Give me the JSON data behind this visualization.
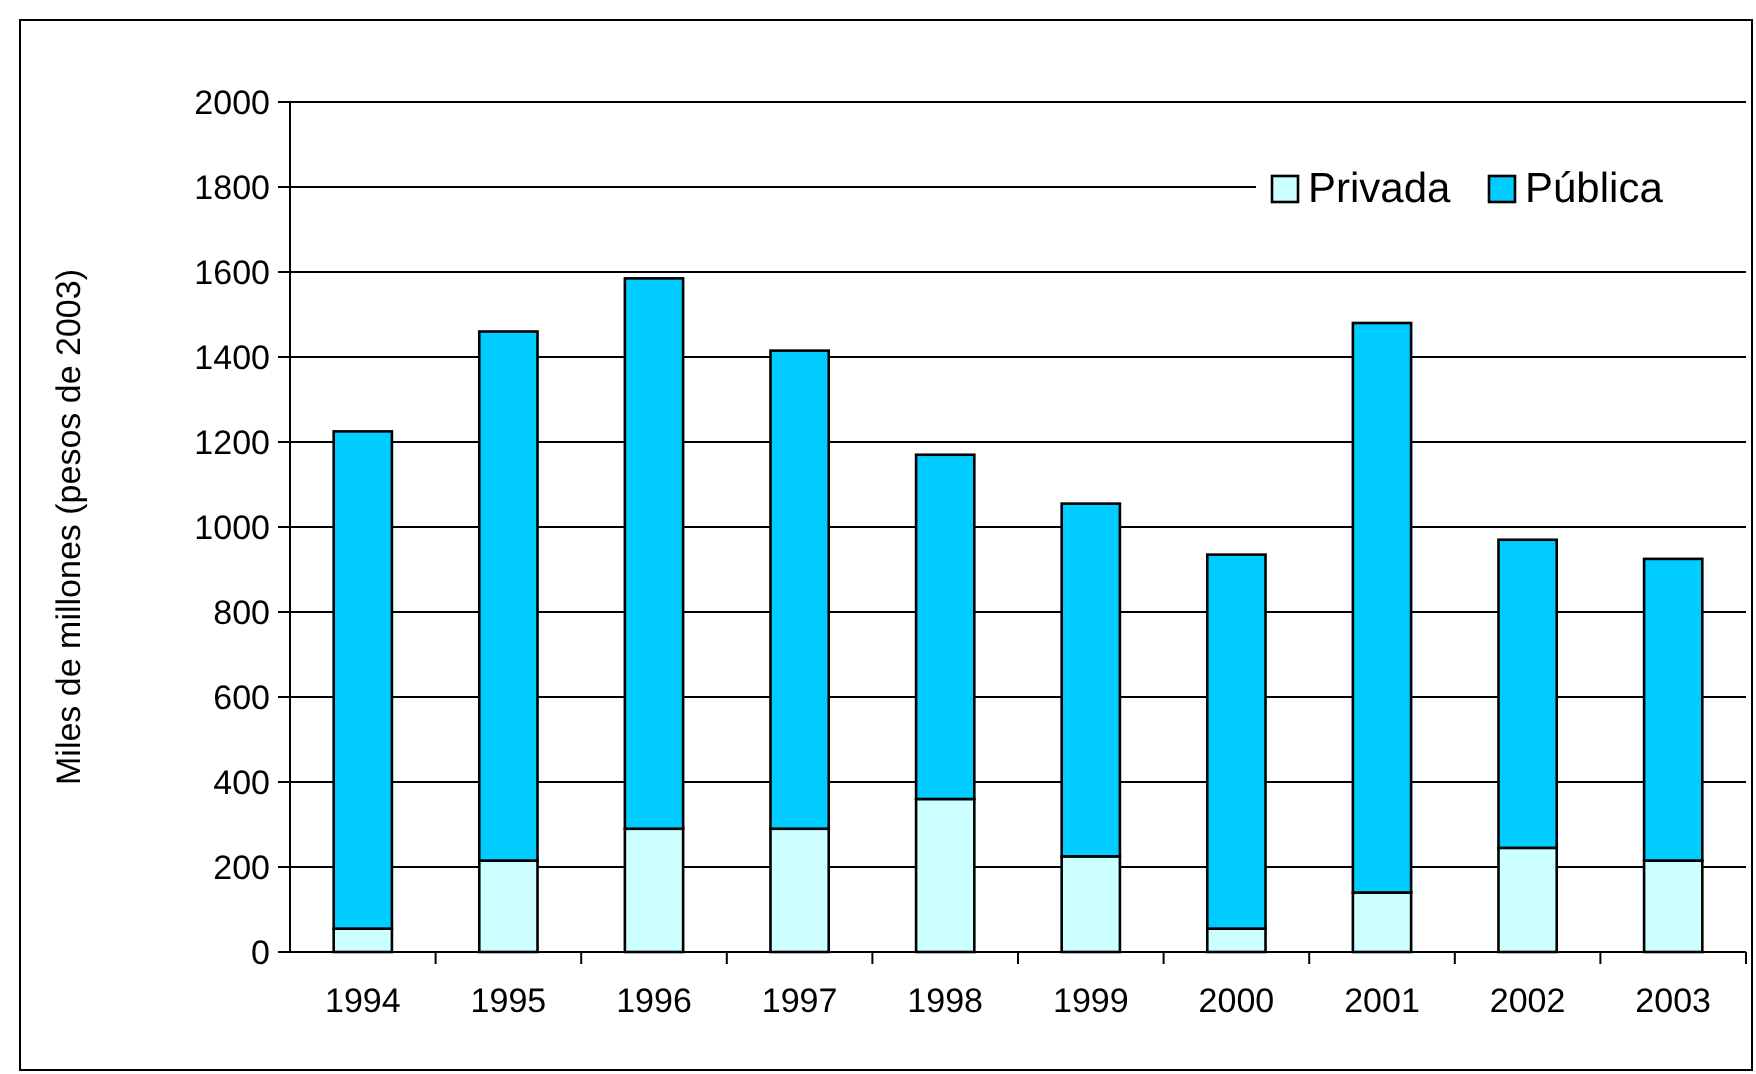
{
  "chart_data": {
    "type": "bar",
    "stacked": true,
    "ylabel": "Miles de millones (pesos de 2003)",
    "categories": [
      "1994",
      "1995",
      "1996",
      "1997",
      "1998",
      "1999",
      "2000",
      "2001",
      "2002",
      "2003"
    ],
    "series": [
      {
        "name": "Privada",
        "color": "#ccffff",
        "values": [
          55,
          215,
          290,
          290,
          360,
          225,
          55,
          140,
          245,
          215
        ]
      },
      {
        "name": "Pública",
        "color": "#00ccff",
        "values": [
          1170,
          1245,
          1295,
          1125,
          810,
          830,
          880,
          1340,
          725,
          710
        ]
      }
    ],
    "ylim": [
      0,
      2000
    ],
    "yticks": [
      0,
      200,
      400,
      600,
      800,
      1000,
      1200,
      1400,
      1600,
      1800,
      2000
    ],
    "grid": "y",
    "legend": "top right"
  }
}
